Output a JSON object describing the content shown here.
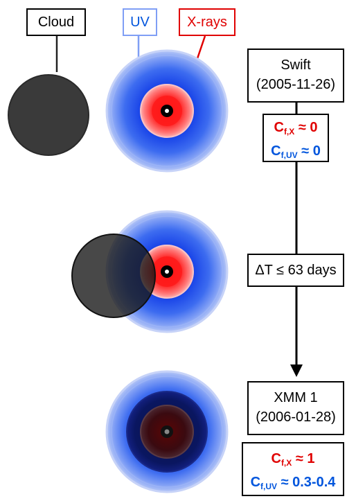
{
  "labels": {
    "cloud": "Cloud",
    "uv": "UV",
    "xrays": "X-rays"
  },
  "observations": {
    "swift": {
      "name": "Swift",
      "date": "(2005-11-26)"
    },
    "interval": "ΔT ≤ 63 days",
    "xmm": {
      "name": "XMM 1",
      "date": "(2006-01-28)"
    }
  },
  "covering_fractions": {
    "swift": {
      "x_symbol": "C",
      "x_sub": "f,X",
      "x_value": "≈ 0",
      "uv_symbol": "C",
      "uv_sub": "f,UV",
      "uv_value": "≈ 0"
    },
    "xmm": {
      "x_symbol": "C",
      "x_sub": "f,X",
      "x_value": "≈ 1",
      "uv_symbol": "C",
      "uv_sub": "f,UV",
      "uv_value": "≈ 0.3-0.4"
    }
  },
  "colors": {
    "cloud": "#3a3a3a",
    "uv": "#3d6cf0",
    "xrays": "#ff2020",
    "uv_label": "#0055dd",
    "xrays_label": "#e00000"
  }
}
